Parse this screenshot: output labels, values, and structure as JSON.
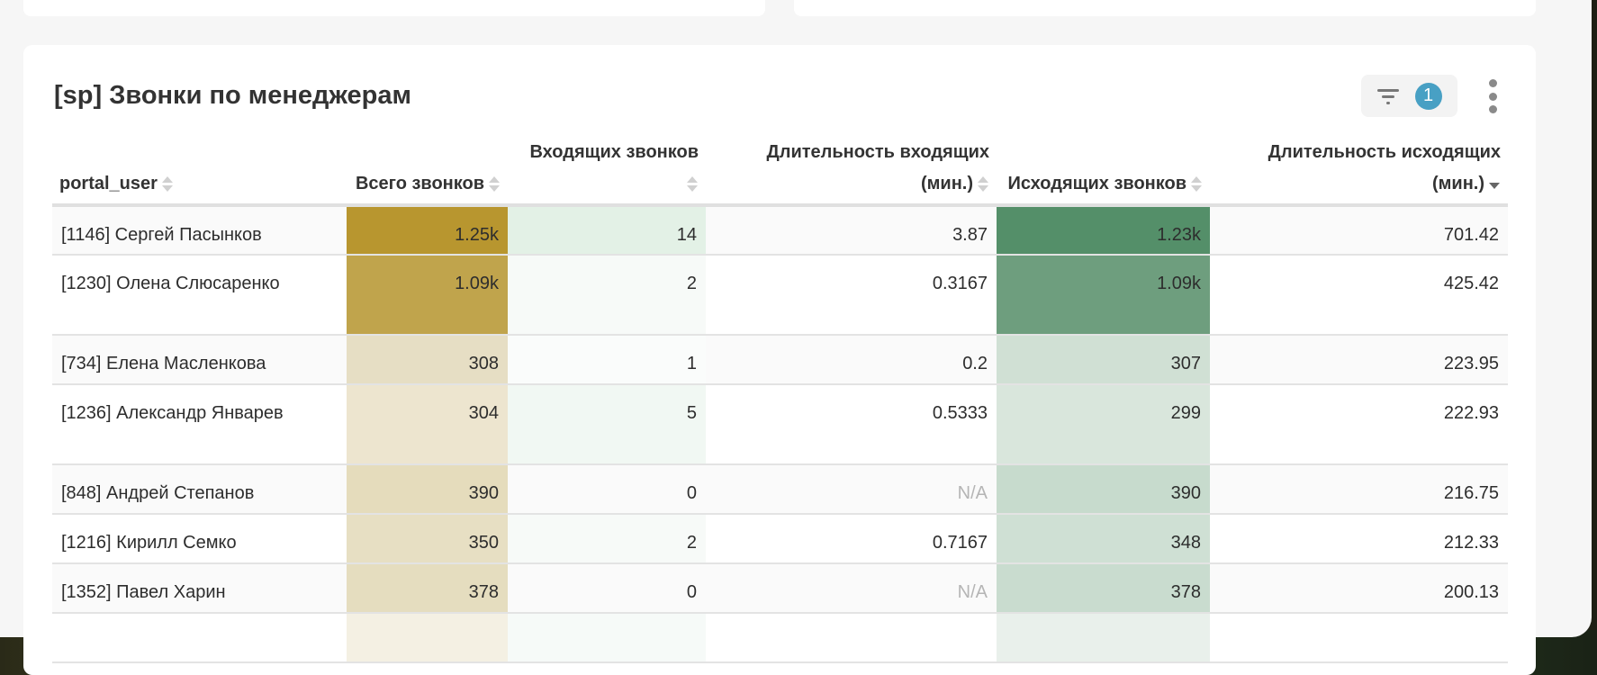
{
  "card": {
    "title": "[sp] Звонки по менеджерам",
    "filter_count": "1"
  },
  "columns": [
    "portal_user",
    "Всего звонков",
    "Входящих звонков",
    "Длительность входящих (мин.)",
    "Исходящих звонков",
    "Длительность исходящих (мин.)"
  ],
  "rows": [
    {
      "user": "[1146] Сергей Пасынков",
      "total": "1.25k",
      "incoming": "14",
      "in_dur": "3.87",
      "outgoing": "1.23k",
      "out_dur": "701.42",
      "colors": [
        "#b8962f",
        "#e3f1e6",
        "#548f69"
      ]
    },
    {
      "user": "[1230] Олена Слюсаренко",
      "total": "1.09k",
      "incoming": "2",
      "in_dur": "0.3167",
      "outgoing": "1.09k",
      "out_dur": "425.42",
      "colors": [
        "#c0a44c",
        "#f7faf8",
        "#6e9e7e"
      ]
    },
    {
      "user": "[734] Елена Масленкова",
      "total": "308",
      "incoming": "1",
      "in_dur": "0.2",
      "outgoing": "307",
      "out_dur": "223.95",
      "colors": [
        "#e6dec4",
        "#fafcfb",
        "#d0e0d4"
      ]
    },
    {
      "user": "[1236] Александр Январев",
      "total": "304",
      "incoming": "5",
      "in_dur": "0.5333",
      "outgoing": "299",
      "out_dur": "222.93",
      "colors": [
        "#ede5cf",
        "#f1f8f3",
        "#d9e6dc"
      ]
    },
    {
      "user": "[848] Андрей Степанов",
      "total": "390",
      "incoming": "0",
      "in_dur": "N/A",
      "outgoing": "390",
      "out_dur": "216.75",
      "colors": [
        "#e5dcbc",
        "#fafafa",
        "#c7dbcd"
      ]
    },
    {
      "user": "[1216] Кирилл Семко",
      "total": "350",
      "incoming": "2",
      "in_dur": "0.7167",
      "outgoing": "348",
      "out_dur": "212.33",
      "colors": [
        "#e7dfc3",
        "#f7faf8",
        "#cfe0d4"
      ]
    },
    {
      "user": "[1352] Павел Харин",
      "total": "378",
      "incoming": "0",
      "in_dur": "N/A",
      "outgoing": "378",
      "out_dur": "200.13",
      "colors": [
        "#e5ddbf",
        "#fafafa",
        "#c9dccf"
      ]
    },
    {
      "user": "",
      "total": "",
      "incoming": "",
      "in_dur": "",
      "outgoing": "",
      "out_dur": "",
      "colors": [
        "#f4f0e3",
        "#f6faf8",
        "#e9f0eb"
      ]
    }
  ]
}
